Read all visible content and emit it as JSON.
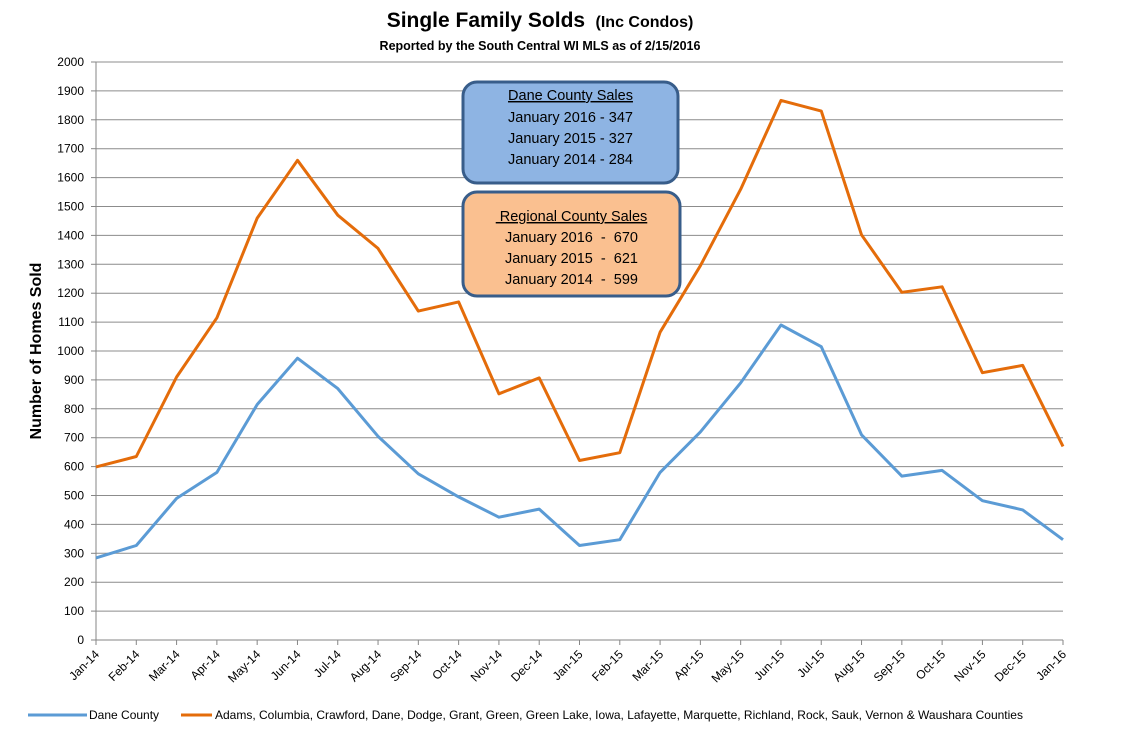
{
  "chart_data": {
    "type": "line",
    "title": "Single Family Solds",
    "title_suffix": "(Inc Condos)",
    "subtitle": "Reported by the South Central WI MLS as of 2/15/2016",
    "xlabel": "",
    "ylabel": "Number of Homes Sold",
    "ylim": [
      0,
      2000
    ],
    "ytick_step": 100,
    "grid": true,
    "legend_position": "bottom",
    "categories": [
      "Jan-14",
      "Feb-14",
      "Mar-14",
      "Apr-14",
      "May-14",
      "Jun-14",
      "Jul-14",
      "Aug-14",
      "Sep-14",
      "Oct-14",
      "Nov-14",
      "Dec-14",
      "Jan-15",
      "Feb-15",
      "Mar-15",
      "Apr-15",
      "May-15",
      "Jun-15",
      "Jul-15",
      "Aug-15",
      "Sep-15",
      "Oct-15",
      "Nov-15",
      "Dec-15",
      "Jan-16"
    ],
    "series": [
      {
        "name": "Dane County",
        "color": "#5B9BD5",
        "values": [
          284,
          327,
          490,
          580,
          815,
          975,
          870,
          705,
          575,
          495,
          425,
          453,
          327,
          347,
          580,
          720,
          890,
          1090,
          1015,
          710,
          567,
          587,
          482,
          450,
          347
        ]
      },
      {
        "name": "Adams, Columbia, Crawford, Dane, Dodge, Grant, Green, Green Lake, Iowa, Lafayette, Marquette, Richland, Rock, Sauk, Vernon & Waushara Counties",
        "color": "#E46C0A",
        "values": [
          599,
          635,
          910,
          1115,
          1460,
          1660,
          1470,
          1355,
          1138,
          1170,
          852,
          907,
          621,
          648,
          1065,
          1295,
          1560,
          1867,
          1830,
          1402,
          1203,
          1222,
          925,
          950,
          670
        ]
      }
    ],
    "annotations": [
      {
        "id": "dane",
        "title": "Dane  County Sales",
        "lines": [
          "January 2016 - 347",
          "January 2015 - 327",
          "January 2014 - 284"
        ],
        "fill": "#8EB4E3",
        "stroke": "#385D8A"
      },
      {
        "id": "regional",
        "title": " Regional County Sales",
        "lines": [
          "January 2016  -  670",
          "January 2015  -  621",
          "January 2014  -  599"
        ],
        "fill": "#FAC090",
        "stroke": "#385D8A"
      }
    ]
  }
}
